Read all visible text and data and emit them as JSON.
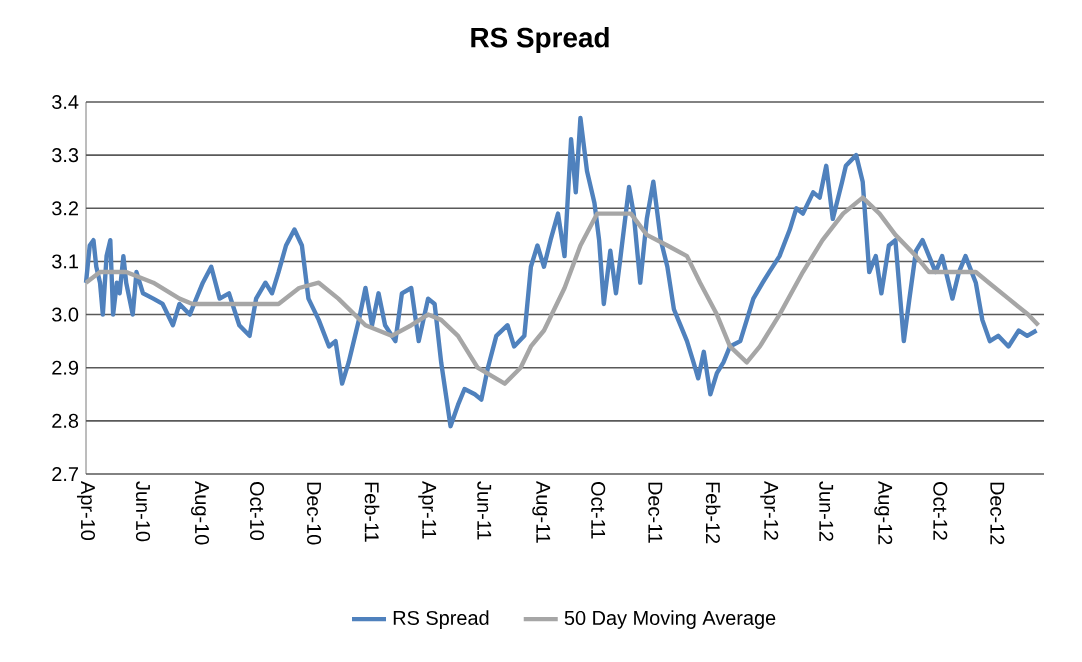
{
  "chart_data": {
    "type": "line",
    "title": "RS Spread",
    "xlim": [
      "2010-04-01",
      "2013-01-20"
    ],
    "xticks": [
      {
        "value": "2010-04-01",
        "label": "Apr-10"
      },
      {
        "value": "2010-06-01",
        "label": "Jun-10"
      },
      {
        "value": "2010-08-01",
        "label": "Aug-10"
      },
      {
        "value": "2010-10-01",
        "label": "Oct-10"
      },
      {
        "value": "2010-12-01",
        "label": "Dec-10"
      },
      {
        "value": "2011-02-01",
        "label": "Feb-11"
      },
      {
        "value": "2011-04-01",
        "label": "Apr-11"
      },
      {
        "value": "2011-06-01",
        "label": "Jun-11"
      },
      {
        "value": "2011-08-01",
        "label": "Aug-11"
      },
      {
        "value": "2011-10-01",
        "label": "Oct-11"
      },
      {
        "value": "2011-12-01",
        "label": "Dec-11"
      },
      {
        "value": "2012-02-01",
        "label": "Feb-12"
      },
      {
        "value": "2012-04-01",
        "label": "Apr-12"
      },
      {
        "value": "2012-06-01",
        "label": "Jun-12"
      },
      {
        "value": "2012-08-01",
        "label": "Aug-12"
      },
      {
        "value": "2012-10-01",
        "label": "Oct-12"
      },
      {
        "value": "2012-12-01",
        "label": "Dec-12"
      }
    ],
    "ylim": [
      2.7,
      3.4
    ],
    "yticks": [
      2.7,
      2.8,
      2.9,
      {
        "value": 3.0,
        "label": "3.0"
      },
      3.1,
      3.2,
      3.3,
      3.4
    ],
    "grid": "y",
    "legend": "bottom",
    "marker": "none",
    "line_style": "solid",
    "series": [
      {
        "name": "RS Spread",
        "color": "#4f81bd",
        "x": [
          "2010-04-01",
          "2010-04-05",
          "2010-04-09",
          "2010-04-12",
          "2010-04-16",
          "2010-04-19",
          "2010-04-23",
          "2010-04-27",
          "2010-04-30",
          "2010-05-04",
          "2010-05-07",
          "2010-05-11",
          "2010-05-14",
          "2010-05-21",
          "2010-05-25",
          "2010-06-01",
          "2010-06-12",
          "2010-06-22",
          "2010-07-03",
          "2010-07-10",
          "2010-07-21",
          "2010-07-28",
          "2010-08-04",
          "2010-08-13",
          "2010-08-22",
          "2010-09-01",
          "2010-09-12",
          "2010-09-23",
          "2010-09-30",
          "2010-10-10",
          "2010-10-17",
          "2010-10-24",
          "2010-11-01",
          "2010-11-10",
          "2010-11-18",
          "2010-11-25",
          "2010-12-06",
          "2010-12-17",
          "2010-12-24",
          "2010-12-31",
          "2011-01-07",
          "2011-01-18",
          "2011-01-25",
          "2011-02-01",
          "2011-02-08",
          "2011-02-15",
          "2011-02-26",
          "2011-03-05",
          "2011-03-15",
          "2011-03-23",
          "2011-04-02",
          "2011-04-09",
          "2011-04-16",
          "2011-04-26",
          "2011-05-04",
          "2011-05-11",
          "2011-05-22",
          "2011-05-29",
          "2011-06-05",
          "2011-06-14",
          "2011-06-26",
          "2011-07-03",
          "2011-07-14",
          "2011-07-21",
          "2011-07-28",
          "2011-08-04",
          "2011-08-11",
          "2011-08-19",
          "2011-08-26",
          "2011-09-02",
          "2011-09-07",
          "2011-09-12",
          "2011-09-19",
          "2011-09-27",
          "2011-10-02",
          "2011-10-07",
          "2011-10-14",
          "2011-10-20",
          "2011-10-25",
          "2011-11-03",
          "2011-11-08",
          "2011-11-15",
          "2011-11-22",
          "2011-11-29",
          "2011-12-07",
          "2011-12-14",
          "2011-12-21",
          "2011-12-28",
          "2012-01-04",
          "2012-01-11",
          "2012-01-16",
          "2012-01-22",
          "2012-01-29",
          "2012-02-05",
          "2012-02-12",
          "2012-02-19",
          "2012-03-01",
          "2012-03-08",
          "2012-03-15",
          "2012-03-25",
          "2012-04-01",
          "2012-04-12",
          "2012-04-23",
          "2012-04-30",
          "2012-05-07",
          "2012-05-18",
          "2012-05-25",
          "2012-06-01",
          "2012-06-08",
          "2012-06-18",
          "2012-06-22",
          "2012-07-03",
          "2012-07-10",
          "2012-07-17",
          "2012-07-24",
          "2012-07-30",
          "2012-08-07",
          "2012-08-14",
          "2012-08-23",
          "2012-08-29",
          "2012-09-05",
          "2012-09-12",
          "2012-09-19",
          "2012-09-26",
          "2012-10-03",
          "2012-10-14",
          "2012-10-21",
          "2012-10-28",
          "2012-11-08",
          "2012-11-15",
          "2012-11-23",
          "2012-12-02",
          "2012-12-13",
          "2012-12-24",
          "2013-01-02",
          "2013-01-12"
        ],
        "values": [
          3.06,
          3.13,
          3.14,
          3.09,
          3.06,
          3.0,
          3.11,
          3.14,
          3.0,
          3.06,
          3.04,
          3.11,
          3.06,
          3.0,
          3.08,
          3.04,
          3.03,
          3.02,
          2.98,
          3.02,
          3.0,
          3.03,
          3.06,
          3.09,
          3.03,
          3.04,
          2.98,
          2.96,
          3.03,
          3.06,
          3.04,
          3.08,
          3.13,
          3.16,
          3.13,
          3.03,
          2.99,
          2.94,
          2.95,
          2.87,
          2.91,
          2.99,
          3.05,
          2.98,
          3.04,
          2.98,
          2.95,
          3.04,
          3.05,
          2.95,
          3.03,
          3.02,
          2.91,
          2.79,
          2.83,
          2.86,
          2.85,
          2.84,
          2.9,
          2.96,
          2.98,
          2.94,
          2.96,
          3.09,
          3.13,
          3.09,
          3.14,
          3.19,
          3.11,
          3.33,
          3.23,
          3.37,
          3.27,
          3.21,
          3.14,
          3.02,
          3.12,
          3.04,
          3.11,
          3.24,
          3.19,
          3.06,
          3.18,
          3.25,
          3.14,
          3.09,
          3.01,
          2.98,
          2.95,
          2.91,
          2.88,
          2.93,
          2.85,
          2.89,
          2.91,
          2.94,
          2.95,
          2.99,
          3.03,
          3.06,
          3.08,
          3.11,
          3.16,
          3.2,
          3.19,
          3.23,
          3.22,
          3.28,
          3.18,
          3.25,
          3.28,
          3.3,
          3.25,
          3.08,
          3.11,
          3.04,
          3.13,
          3.14,
          2.95,
          3.03,
          3.12,
          3.14,
          3.11,
          3.08,
          3.11,
          3.03,
          3.08,
          3.11,
          3.06,
          2.99,
          2.95,
          2.96,
          2.94,
          2.97,
          2.96,
          2.97
        ]
      },
      {
        "name": "50 Day Moving Average",
        "color": "#a6a6a6",
        "x": [
          "2010-04-01",
          "2010-04-16",
          "2010-05-14",
          "2010-06-12",
          "2010-07-10",
          "2010-07-24",
          "2010-08-29",
          "2010-09-30",
          "2010-10-24",
          "2010-11-15",
          "2010-12-06",
          "2010-12-27",
          "2011-01-25",
          "2011-02-22",
          "2011-03-15",
          "2011-04-02",
          "2011-04-16",
          "2011-05-04",
          "2011-05-25",
          "2011-06-23",
          "2011-07-10",
          "2011-07-21",
          "2011-08-04",
          "2011-08-26",
          "2011-09-12",
          "2011-09-30",
          "2011-10-18",
          "2011-11-05",
          "2011-11-22",
          "2011-12-14",
          "2012-01-04",
          "2012-01-18",
          "2012-02-05",
          "2012-02-19",
          "2012-03-08",
          "2012-03-22",
          "2012-04-12",
          "2012-05-07",
          "2012-05-28",
          "2012-06-19",
          "2012-07-10",
          "2012-07-28",
          "2012-08-14",
          "2012-09-05",
          "2012-09-19",
          "2012-10-18",
          "2012-11-08",
          "2012-11-22",
          "2012-12-13",
          "2013-01-03",
          "2013-01-14"
        ],
        "values": [
          3.06,
          3.08,
          3.08,
          3.06,
          3.03,
          3.02,
          3.02,
          3.02,
          3.02,
          3.05,
          3.06,
          3.03,
          2.98,
          2.96,
          2.98,
          3.0,
          2.99,
          2.96,
          2.9,
          2.87,
          2.9,
          2.94,
          2.97,
          3.05,
          3.13,
          3.19,
          3.19,
          3.19,
          3.15,
          3.13,
          3.11,
          3.06,
          3.0,
          2.94,
          2.91,
          2.94,
          3.0,
          3.08,
          3.14,
          3.19,
          3.22,
          3.19,
          3.15,
          3.11,
          3.08,
          3.08,
          3.08,
          3.06,
          3.03,
          3.0,
          2.98
        ]
      }
    ]
  }
}
